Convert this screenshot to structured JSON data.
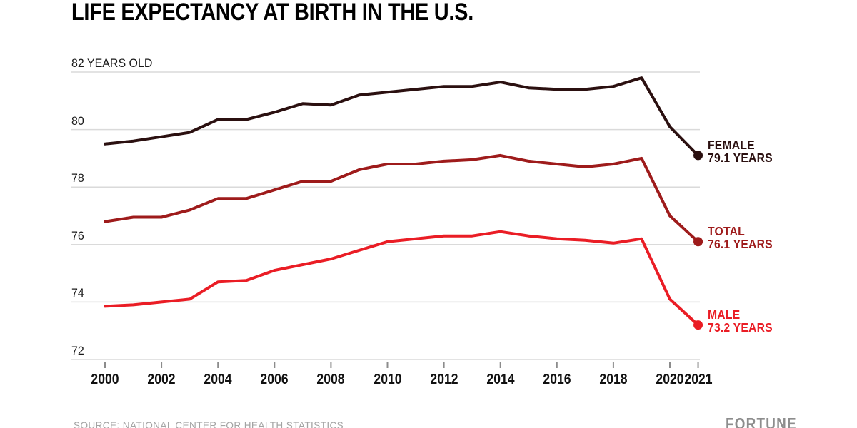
{
  "title": "LIFE EXPECTANCY AT BIRTH IN THE U.S.",
  "source_note": "SOURCE: NATIONAL CENTER FOR HEALTH STATISTICS",
  "brand": "FORTUNE",
  "colors": {
    "female": "#2b1010",
    "total": "#9e1b1b",
    "male": "#ea1d25",
    "grid": "#dadada",
    "tick": "#8c8c8c",
    "axis_text": "#1a1a1a",
    "muted_text": "#a3a3a3"
  },
  "chart_data": {
    "type": "line",
    "title": "LIFE EXPECTANCY AT BIRTH IN THE U.S.",
    "xlabel": "",
    "ylabel": "YEARS OLD",
    "x": [
      2000,
      2001,
      2002,
      2003,
      2004,
      2005,
      2006,
      2007,
      2008,
      2009,
      2010,
      2011,
      2012,
      2013,
      2014,
      2015,
      2016,
      2017,
      2018,
      2019,
      2020,
      2021
    ],
    "x_ticks": [
      {
        "year": 2000,
        "label": "2000"
      },
      {
        "year": 2002,
        "label": "2002"
      },
      {
        "year": 2004,
        "label": "2004"
      },
      {
        "year": 2006,
        "label": "2006"
      },
      {
        "year": 2008,
        "label": "2008"
      },
      {
        "year": 2010,
        "label": "2010"
      },
      {
        "year": 2012,
        "label": "2012"
      },
      {
        "year": 2014,
        "label": "2014"
      },
      {
        "year": 2016,
        "label": "2016"
      },
      {
        "year": 2018,
        "label": "2018"
      },
      {
        "year": 2020,
        "label": "2020"
      },
      {
        "year": 2021,
        "label": "2021"
      }
    ],
    "y_ticks": [
      {
        "value": 82,
        "label": "82 YEARS OLD"
      },
      {
        "value": 80,
        "label": "80"
      },
      {
        "value": 78,
        "label": "78"
      },
      {
        "value": 76,
        "label": "76"
      },
      {
        "value": 74,
        "label": "74"
      },
      {
        "value": 72,
        "label": "72"
      }
    ],
    "ylim": [
      71.6,
      82.5
    ],
    "grid": "horizontal-only",
    "legend_position": "right-end-labels",
    "series": [
      {
        "id": "female",
        "name": "FEMALE",
        "end_label": "79.1 YEARS",
        "end_value": 79.1,
        "color": "#2b1010",
        "values": [
          79.5,
          79.6,
          79.75,
          79.9,
          80.35,
          80.35,
          80.6,
          80.9,
          80.85,
          81.2,
          81.3,
          81.4,
          81.5,
          81.5,
          81.65,
          81.45,
          81.4,
          81.4,
          81.5,
          81.8,
          80.1,
          79.1
        ]
      },
      {
        "id": "total",
        "name": "TOTAL",
        "end_label": "76.1 YEARS",
        "end_value": 76.1,
        "color": "#9e1b1b",
        "values": [
          76.8,
          76.95,
          76.95,
          77.2,
          77.6,
          77.6,
          77.9,
          78.2,
          78.2,
          78.6,
          78.8,
          78.8,
          78.9,
          78.95,
          79.1,
          78.9,
          78.8,
          78.7,
          78.8,
          79.0,
          77.0,
          76.1
        ]
      },
      {
        "id": "male",
        "name": "MALE",
        "end_label": "73.2 YEARS",
        "end_value": 73.2,
        "color": "#ea1d25",
        "values": [
          73.85,
          73.9,
          74.0,
          74.1,
          74.7,
          74.75,
          75.1,
          75.3,
          75.5,
          75.8,
          76.1,
          76.2,
          76.3,
          76.3,
          76.45,
          76.3,
          76.2,
          76.15,
          76.05,
          76.2,
          74.1,
          73.2
        ]
      }
    ]
  }
}
